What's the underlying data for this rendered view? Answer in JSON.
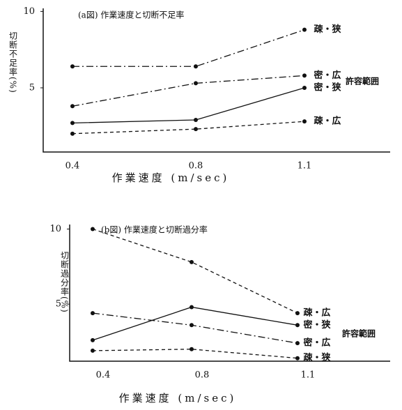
{
  "chart_data": [
    {
      "type": "line",
      "title": "(a図) 作業速度と切断不足率",
      "y_label": "切断不足率(%)",
      "x_label": "作業速度 (m/sec)",
      "categories": [
        "0.4",
        "0.8",
        "1.1"
      ],
      "ylim": [
        0.8,
        10.2
      ],
      "yticks": [
        5,
        10
      ],
      "annotation": "許容範囲",
      "series": [
        {
          "name": "疎・狭",
          "color": "#111111",
          "line_style": "dashdot",
          "values": [
            6.4,
            6.4,
            8.8
          ]
        },
        {
          "name": "密・広",
          "color": "#111111",
          "line_style": "dashdot",
          "values": [
            3.8,
            5.3,
            5.8
          ]
        },
        {
          "name": "密・狭",
          "color": "#111111",
          "line_style": "solid",
          "values": [
            2.7,
            2.9,
            5.0
          ]
        },
        {
          "name": "疎・広",
          "color": "#111111",
          "line_style": "dashed",
          "values": [
            2.0,
            2.3,
            2.8
          ]
        }
      ]
    },
    {
      "type": "line",
      "title": "(b図) 作業速度と切断過分率",
      "y_label": "切断過分率(%)",
      "x_label": "作業速度 (m/sec)",
      "categories": [
        "0.4",
        "0.8",
        "1.1"
      ],
      "ylim": [
        1.2,
        10.3
      ],
      "yticks": [
        5,
        10
      ],
      "annotation": "許容範囲",
      "series": [
        {
          "name": "疎・広",
          "color": "#111111",
          "line_style": "dashed",
          "values": [
            10.0,
            7.8,
            4.4
          ]
        },
        {
          "name": "密・狭",
          "color": "#111111",
          "line_style": "solid",
          "values": [
            2.6,
            4.8,
            3.6
          ]
        },
        {
          "name": "密・広",
          "color": "#111111",
          "line_style": "dashdot",
          "values": [
            4.4,
            3.6,
            2.4
          ]
        },
        {
          "name": "疎・狭",
          "color": "#111111",
          "line_style": "dashed",
          "values": [
            1.9,
            2.0,
            1.4
          ]
        }
      ]
    }
  ]
}
